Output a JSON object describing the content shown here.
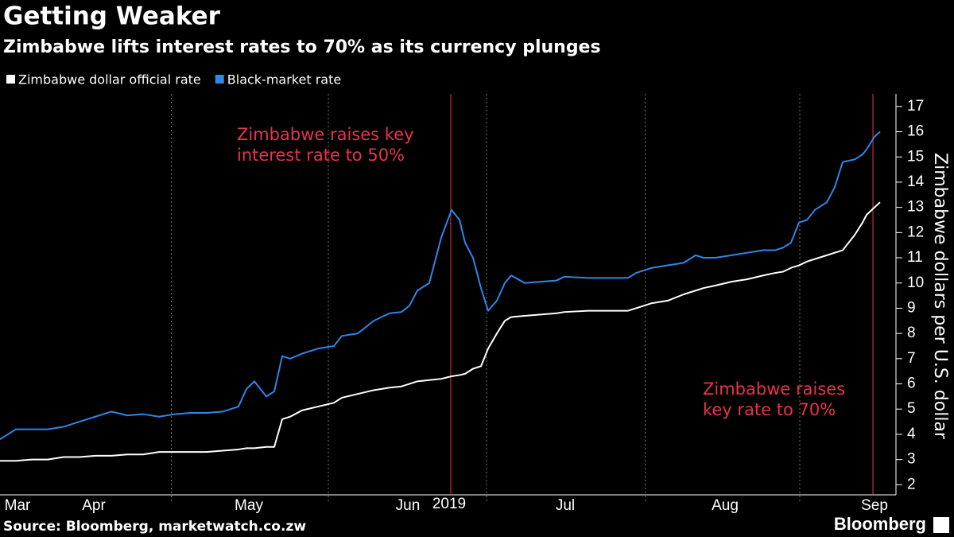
{
  "chart_data": {
    "type": "line",
    "title": "Getting Weaker",
    "subtitle": "Zimbabwe lifts interest rates to 70% as its currency plunges",
    "y_label": "Zimbabwe dollars per U.S. dollar",
    "x_label": "2019",
    "source": "Source: Bloomberg, marketwatch.co.zw",
    "brand": "Bloomberg",
    "x": [
      0,
      20,
      40,
      60,
      80,
      100,
      120,
      140,
      160,
      180,
      200,
      220,
      240,
      260,
      280,
      300,
      310,
      320,
      335,
      345,
      355,
      365,
      380,
      400,
      420,
      430,
      450,
      470,
      490,
      505,
      515,
      525,
      540,
      555,
      568,
      578,
      585,
      595,
      605,
      614,
      625,
      635,
      643,
      660,
      680,
      700,
      710,
      740,
      760,
      790,
      800,
      820,
      840,
      860,
      875,
      885,
      900,
      920,
      940,
      960,
      975,
      985,
      995,
      1005,
      1015,
      1025,
      1040,
      1050,
      1060,
      1075,
      1085,
      1090,
      1100,
      1107
    ],
    "xlim": [
      0,
      1127
    ],
    "xticks": [
      {
        "value": 22,
        "label": "Mar"
      },
      {
        "value": 118,
        "label": "Apr"
      },
      {
        "value": 313,
        "label": "May"
      },
      {
        "value": 513,
        "label": "Jun"
      },
      {
        "value": 711,
        "label": "Jul"
      },
      {
        "value": 912,
        "label": "Aug"
      },
      {
        "value": 1100,
        "label": "Sep"
      }
    ],
    "ylim": [
      1.6,
      17.5
    ],
    "yticks": [
      2,
      3,
      4,
      5,
      6,
      7,
      8,
      9,
      10,
      11,
      12,
      13,
      14,
      15,
      16,
      17
    ],
    "y_axis_side": "right",
    "series": [
      {
        "name": "Zimbabwe dollar official rate",
        "color": "#ffffff",
        "values": [
          2.95,
          2.95,
          3.0,
          3.0,
          3.1,
          3.1,
          3.15,
          3.15,
          3.2,
          3.2,
          3.3,
          3.3,
          3.3,
          3.3,
          3.35,
          3.4,
          3.45,
          3.45,
          3.5,
          3.5,
          4.6,
          4.7,
          4.95,
          5.1,
          5.25,
          5.45,
          5.6,
          5.75,
          5.85,
          5.9,
          6.0,
          6.1,
          6.15,
          6.2,
          6.3,
          6.35,
          6.4,
          6.6,
          6.7,
          7.4,
          8.0,
          8.5,
          8.65,
          8.7,
          8.75,
          8.8,
          8.85,
          8.9,
          8.9,
          8.9,
          9.0,
          9.2,
          9.3,
          9.55,
          9.7,
          9.8,
          9.9,
          10.05,
          10.15,
          10.3,
          10.4,
          10.45,
          10.6,
          10.7,
          10.85,
          10.95,
          11.1,
          11.2,
          11.3,
          11.9,
          12.4,
          12.7,
          13.0,
          13.2
        ]
      },
      {
        "name": "Black-market rate",
        "color": "#2f86eb",
        "values": [
          3.8,
          4.2,
          4.2,
          4.2,
          4.3,
          4.5,
          4.7,
          4.9,
          4.75,
          4.8,
          4.7,
          4.8,
          4.85,
          4.85,
          4.9,
          5.1,
          5.8,
          6.1,
          5.5,
          5.7,
          7.1,
          7.0,
          7.2,
          7.4,
          7.5,
          7.9,
          8.0,
          8.5,
          8.8,
          8.85,
          9.1,
          9.7,
          10.0,
          11.8,
          12.9,
          12.5,
          11.6,
          11.0,
          9.8,
          8.9,
          9.3,
          10.0,
          10.3,
          10.0,
          10.05,
          10.1,
          10.25,
          10.2,
          10.2,
          10.2,
          10.4,
          10.6,
          10.7,
          10.8,
          11.1,
          11.0,
          11.0,
          11.1,
          11.2,
          11.3,
          11.3,
          11.4,
          11.6,
          12.4,
          12.5,
          12.9,
          13.2,
          13.8,
          14.8,
          14.9,
          15.1,
          15.3,
          15.8,
          16.0
        ]
      }
    ],
    "annotations": [
      {
        "x": 567,
        "lines": [
          "Zimbabwe raises key",
          "interest rate to 50%"
        ],
        "color": "#e8334a"
      },
      {
        "x": 1098,
        "lines": [
          "Zimbabwe raises",
          "key rate to 70%"
        ],
        "color": "#e8334a"
      }
    ]
  }
}
